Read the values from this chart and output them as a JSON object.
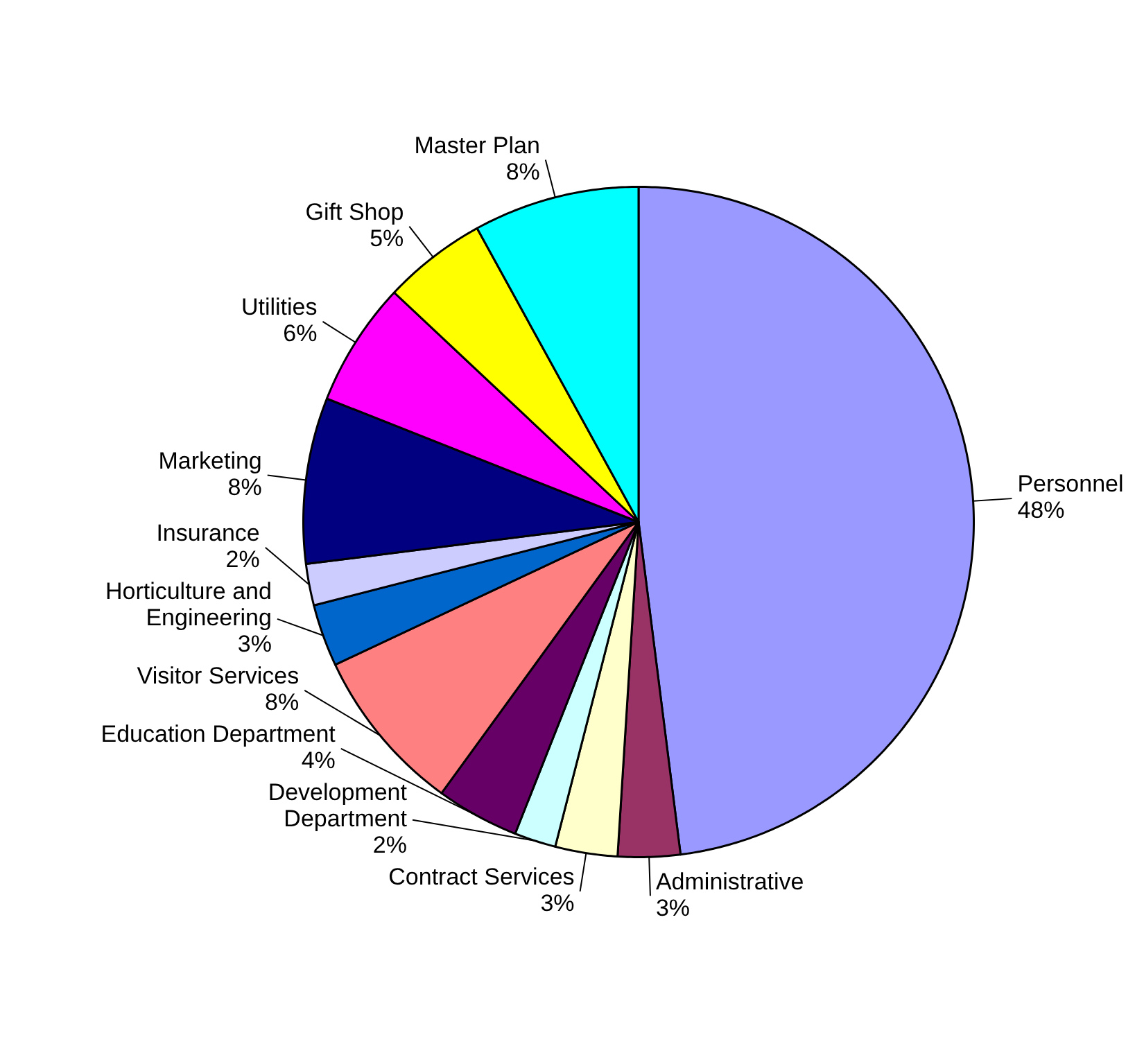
{
  "chart_data": {
    "type": "pie",
    "categories": [
      "Personnel",
      "Administrative",
      "Contract Services",
      "Development Department",
      "Education Department",
      "Visitor Services",
      "Horticulture and Engineering",
      "Insurance",
      "Marketing",
      "Utilities",
      "Gift Shop",
      "Master Plan"
    ],
    "values": [
      48,
      3,
      3,
      2,
      4,
      8,
      3,
      2,
      8,
      6,
      5,
      8
    ],
    "colors": [
      "#9999ff",
      "#993366",
      "#ffffcc",
      "#ccffff",
      "#660066",
      "#ff8080",
      "#0066cc",
      "#ccccff",
      "#000080",
      "#ff00ff",
      "#ffff00",
      "#00ffff"
    ],
    "value_labels": [
      "48%",
      "3%",
      "3%",
      "2%",
      "4%",
      "8%",
      "3%",
      "2%",
      "8%",
      "6%",
      "5%",
      "8%"
    ]
  }
}
